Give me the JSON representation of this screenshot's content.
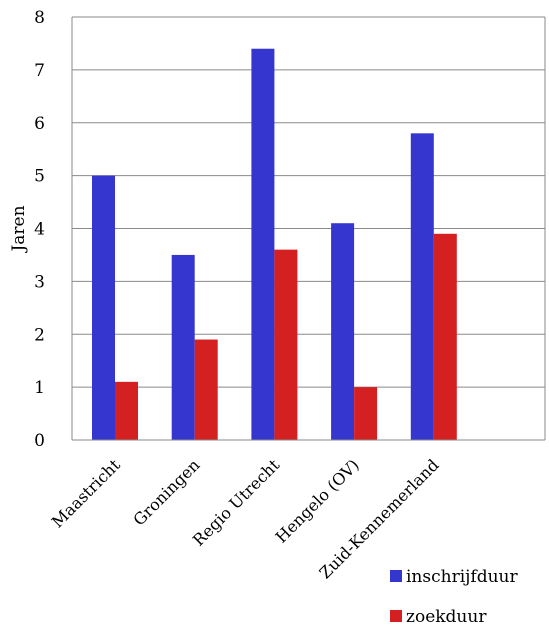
{
  "chart_data": {
    "type": "bar",
    "categories": [
      "Maastricht",
      "Groningen",
      "Regio Utrecht",
      "Hengelo (OV)",
      "Zuid-Kennemerland"
    ],
    "series": [
      {
        "name": "inschrijfduur",
        "values": [
          5.0,
          3.5,
          7.4,
          4.1,
          5.8
        ],
        "color": "#3535d0"
      },
      {
        "name": "zoekduur",
        "values": [
          1.1,
          1.9,
          3.6,
          1.0,
          3.9
        ],
        "color": "#d42020"
      }
    ],
    "ylabel": "Jaren",
    "xlabel": "",
    "ylim": [
      0,
      8
    ],
    "yticks": [
      "0",
      "1",
      "2",
      "3",
      "4",
      "5",
      "6",
      "7",
      "8"
    ],
    "grid": true,
    "legend_position": "bottom-right"
  }
}
